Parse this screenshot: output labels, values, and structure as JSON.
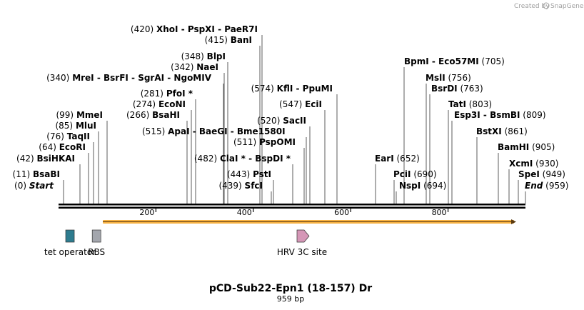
{
  "credit": {
    "prefix": "Created by",
    "brand": "SnapGene"
  },
  "map": {
    "title": "pCD-Sub22-Epn1 (18-157) Dr",
    "length_label": "959 bp",
    "length": 959,
    "ruler": {
      "ticks": [
        200,
        400,
        600,
        800
      ]
    }
  },
  "sites": [
    {
      "id": "s0",
      "pos": "(0)",
      "name": "Start",
      "italic": true,
      "loc": 0
    },
    {
      "id": "s1",
      "pos": "(11)",
      "name": "BsaBI",
      "loc": 11
    },
    {
      "id": "s2",
      "pos": "(42)",
      "name": "BsiHKAI",
      "loc": 42
    },
    {
      "id": "s3",
      "pos": "(64)",
      "name": "EcoRI",
      "loc": 64
    },
    {
      "id": "s4",
      "pos": "(76)",
      "name": "TaqII",
      "loc": 76
    },
    {
      "id": "s5",
      "pos": "(85)",
      "name": "MluI",
      "loc": 85
    },
    {
      "id": "s6",
      "pos": "(99)",
      "name": "MmeI",
      "loc": 99
    },
    {
      "id": "s7",
      "pos": "(266)",
      "name": "BsaHI",
      "loc": 266
    },
    {
      "id": "s8",
      "pos": "(274)",
      "name": "EcoNI",
      "loc": 274
    },
    {
      "id": "s9",
      "pos": "(281)",
      "name": "PfoI *",
      "loc": 281
    },
    {
      "id": "s10",
      "pos": "(340)",
      "name": "MreI  -  BsrFI  -  SgrAI  -  NgoMIV",
      "loc": 340
    },
    {
      "id": "s11",
      "pos": "(342)",
      "name": "NaeI",
      "loc": 342
    },
    {
      "id": "s12",
      "pos": "(348)",
      "name": "BlpI",
      "loc": 348
    },
    {
      "id": "s13",
      "pos": "(415)",
      "name": "BanI",
      "loc": 415
    },
    {
      "id": "s14",
      "pos": "(420)",
      "name": "XhoI  -  PspXI  -  PaeR7I",
      "loc": 420
    },
    {
      "id": "s15",
      "pos": "(515)",
      "name": "ApaI  -  BaeGI  -  Bme1580I",
      "loc": 515,
      "name_first": true
    },
    {
      "id": "s16",
      "pos": "(482)",
      "name": "ClaI *  -  BspDI *",
      "loc": 482
    },
    {
      "id": "s17",
      "pos": "(443)",
      "name": "PstI",
      "loc": 443
    },
    {
      "id": "s18",
      "pos": "(439)",
      "name": "SfcI",
      "loc": 439
    },
    {
      "id": "s19",
      "pos": "(511)",
      "name": "PspOMI",
      "loc": 511
    },
    {
      "id": "s20",
      "pos": "(520)",
      "name": "SacII",
      "loc": 520
    },
    {
      "id": "s21",
      "pos": "(547)",
      "name": "EciI",
      "loc": 547
    },
    {
      "id": "s22",
      "pos": "(574)",
      "name": "KflI  -  PpuMI",
      "loc": 574
    },
    {
      "id": "s23",
      "pos": "(652)",
      "name": "EarI",
      "loc": 652,
      "name_first": true
    },
    {
      "id": "s24",
      "pos": "(690)",
      "name": "PciI",
      "loc": 690,
      "name_first": true
    },
    {
      "id": "s25",
      "pos": "(694)",
      "name": "NspI",
      "loc": 694,
      "name_first": true
    },
    {
      "id": "s26",
      "pos": "(705)",
      "name": "BpmI  -  Eco57MI",
      "loc": 705,
      "name_first": true
    },
    {
      "id": "s27",
      "pos": "(756)",
      "name": "MslI",
      "loc": 756,
      "name_first": true
    },
    {
      "id": "s28",
      "pos": "(763)",
      "name": "BsrDI",
      "loc": 763,
      "name_first": true
    },
    {
      "id": "s29",
      "pos": "(803)",
      "name": "TatI",
      "loc": 803,
      "name_first": true
    },
    {
      "id": "s30",
      "pos": "(809)",
      "name": "Esp3I  -  BsmBI",
      "loc": 809,
      "name_first": true
    },
    {
      "id": "s31",
      "pos": "(861)",
      "name": "BstXI",
      "loc": 861,
      "name_first": true
    },
    {
      "id": "s32",
      "pos": "(905)",
      "name": "BamHI",
      "loc": 905,
      "name_first": true
    },
    {
      "id": "s33",
      "pos": "(930)",
      "name": "XcmI",
      "loc": 930,
      "name_first": true
    },
    {
      "id": "s34",
      "pos": "(949)",
      "name": "SpeI",
      "loc": 949,
      "name_first": true
    },
    {
      "id": "s35",
      "pos": "(959)",
      "name": "End",
      "italic": true,
      "loc": 959,
      "name_first": true
    }
  ],
  "features": [
    {
      "id": "f_tet",
      "name": "tet operator",
      "type": "box",
      "color": "#2e7c8f",
      "start": 15,
      "end": 32
    },
    {
      "id": "f_rbs",
      "name": "RBS",
      "type": "box",
      "color": "#a3a6ad",
      "start": 72,
      "end": 84
    },
    {
      "id": "f_hrv",
      "name": "HRV 3C site",
      "type": "arrow",
      "color": "#d597b7",
      "start": 493,
      "end": 517
    },
    {
      "id": "f_orf",
      "name": "",
      "type": "orf",
      "color": "#f5b041",
      "start": 92,
      "end": 940
    }
  ]
}
